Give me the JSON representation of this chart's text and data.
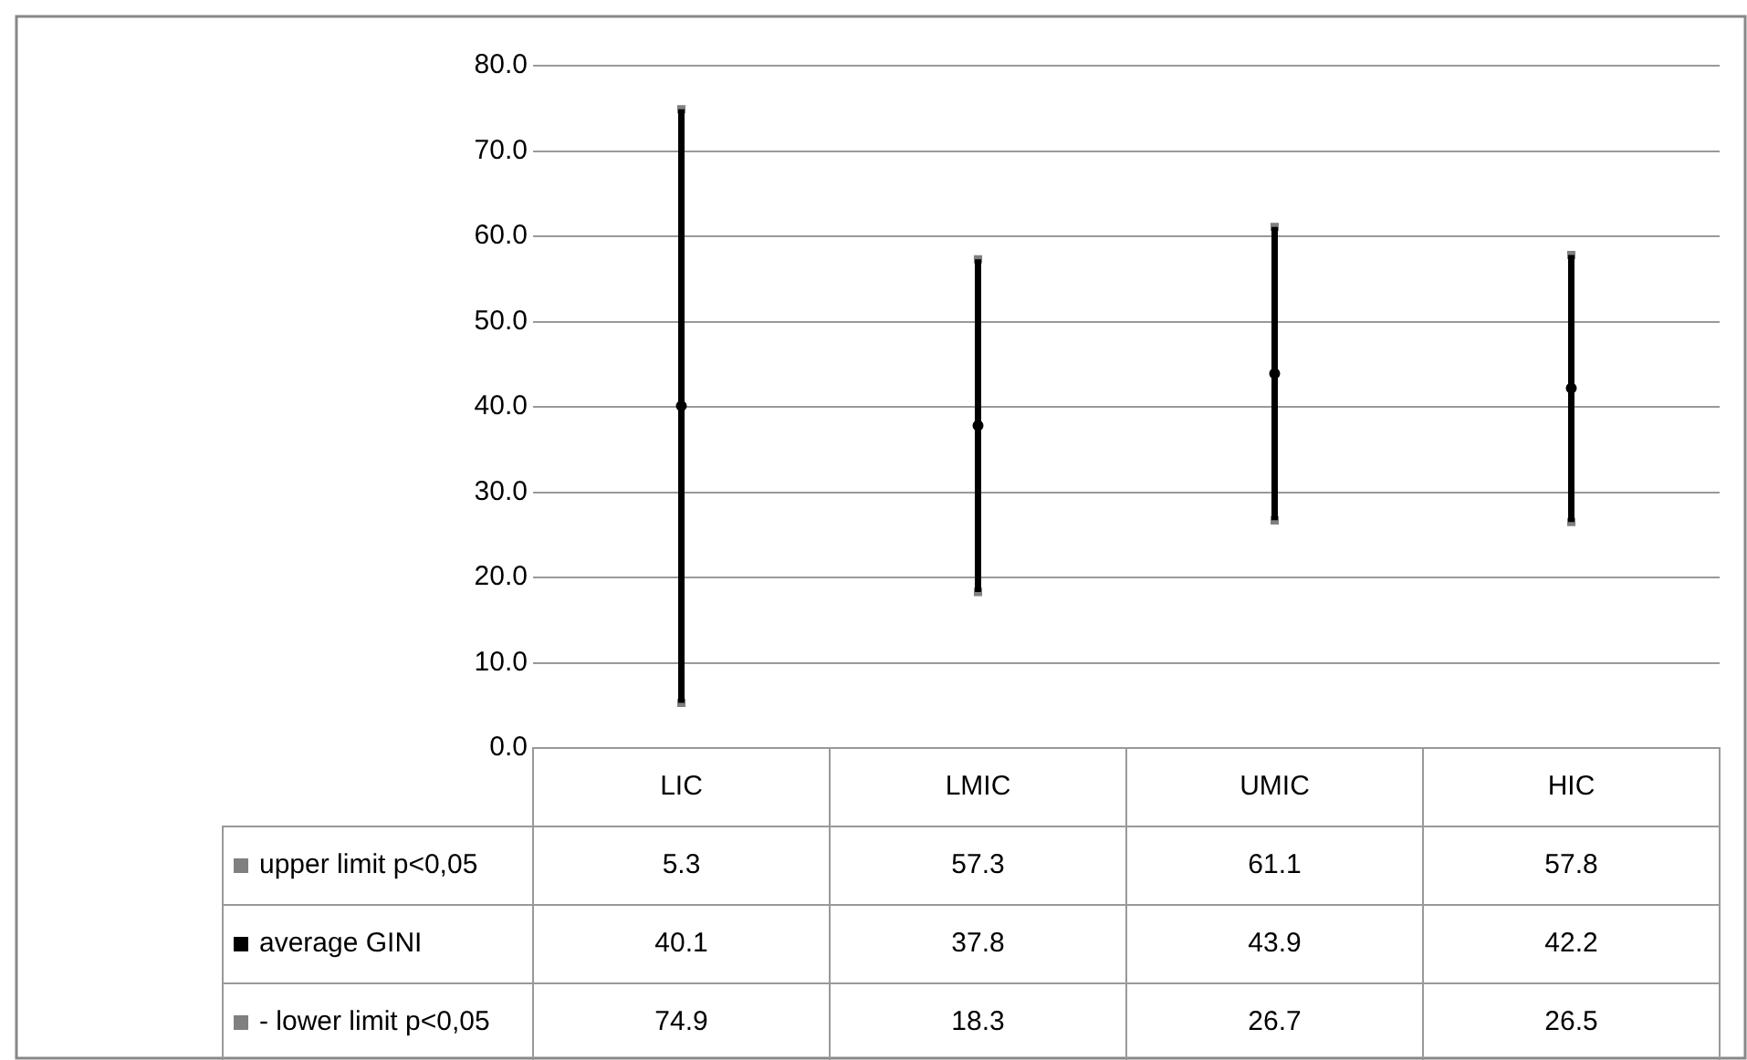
{
  "chart_data": {
    "type": "scatter",
    "categories": [
      "LIC",
      "LMIC",
      "UMIC",
      "HIC"
    ],
    "series": [
      {
        "name": "upper limit p<0,05",
        "color": "#808080",
        "marker": "square",
        "values": [
          5.3,
          57.3,
          61.1,
          57.8
        ]
      },
      {
        "name": "average GINI",
        "color": "#000000",
        "marker": "circle",
        "values": [
          40.1,
          37.8,
          43.9,
          42.2
        ]
      },
      {
        "name": "- lower limit p<0,05",
        "color": "#808080",
        "marker": "square",
        "values": [
          74.9,
          18.3,
          26.7,
          26.5
        ]
      }
    ],
    "ylim": [
      0,
      80
    ],
    "yticks": [
      {
        "value": 0,
        "label": "0.0"
      },
      {
        "value": 10,
        "label": "10.0"
      },
      {
        "value": 20,
        "label": "20.0"
      },
      {
        "value": 30,
        "label": "30.0"
      },
      {
        "value": 40,
        "label": "40.0"
      },
      {
        "value": 50,
        "label": "50.0"
      },
      {
        "value": 60,
        "label": "60.0"
      },
      {
        "value": 70,
        "label": "70.0"
      },
      {
        "value": 80,
        "label": "80.0"
      }
    ],
    "grid": "y",
    "legend": "bottom left",
    "data_labels": true
  }
}
